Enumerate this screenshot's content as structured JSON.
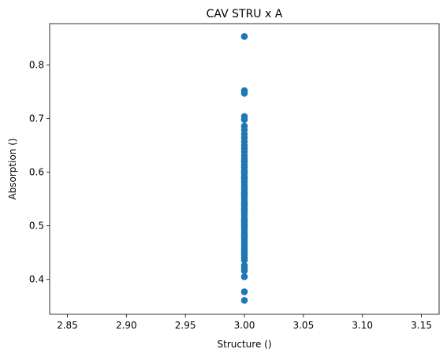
{
  "chart_data": {
    "type": "scatter",
    "title": "CAV STRU x A",
    "xlabel": "Structure ()",
    "ylabel": "Absorption ()",
    "xlim": [
      2.835,
      3.165
    ],
    "ylim": [
      0.335,
      0.877
    ],
    "xticks": [
      2.85,
      2.9,
      2.95,
      3.0,
      3.05,
      3.1,
      3.15
    ],
    "xtick_labels": [
      "2.85",
      "2.90",
      "2.95",
      "3.00",
      "3.05",
      "3.10",
      "3.15"
    ],
    "yticks": [
      0.4,
      0.5,
      0.6,
      0.7,
      0.8
    ],
    "ytick_labels": [
      "0.4",
      "0.5",
      "0.6",
      "0.7",
      "0.8"
    ],
    "grid": false,
    "legend": "none",
    "marker_color": "#1f77b4",
    "series": [
      {
        "x": [
          3.0,
          3.0,
          3.0,
          3.0,
          3.0,
          3.0,
          3.0,
          3.0,
          3.0,
          3.0,
          3.0,
          3.0,
          3.0,
          3.0,
          3.0,
          3.0,
          3.0,
          3.0,
          3.0,
          3.0,
          3.0,
          3.0,
          3.0,
          3.0,
          3.0,
          3.0,
          3.0,
          3.0,
          3.0,
          3.0,
          3.0,
          3.0,
          3.0,
          3.0,
          3.0,
          3.0,
          3.0,
          3.0,
          3.0,
          3.0,
          3.0,
          3.0,
          3.0,
          3.0,
          3.0,
          3.0,
          3.0,
          3.0,
          3.0,
          3.0,
          3.0,
          3.0,
          3.0,
          3.0,
          3.0,
          3.0,
          3.0,
          3.0,
          3.0,
          3.0,
          3.0,
          3.0,
          3.0,
          3.0,
          3.0,
          3.0,
          3.0,
          3.0,
          3.0,
          3.0
        ],
        "y": [
          0.853,
          0.752,
          0.747,
          0.704,
          0.698,
          0.686,
          0.679,
          0.671,
          0.664,
          0.657,
          0.65,
          0.644,
          0.638,
          0.631,
          0.625,
          0.62,
          0.614,
          0.609,
          0.603,
          0.598,
          0.593,
          0.587,
          0.582,
          0.577,
          0.572,
          0.566,
          0.561,
          0.556,
          0.551,
          0.546,
          0.541,
          0.536,
          0.531,
          0.526,
          0.521,
          0.516,
          0.511,
          0.506,
          0.501,
          0.496,
          0.491,
          0.486,
          0.481,
          0.476,
          0.471,
          0.466,
          0.461,
          0.456,
          0.451,
          0.446,
          0.441,
          0.436,
          0.426,
          0.421,
          0.416,
          0.405,
          0.377,
          0.361,
          0.6,
          0.57,
          0.54,
          0.51,
          0.48,
          0.455,
          0.62,
          0.59,
          0.56,
          0.53,
          0.5,
          0.44
        ]
      }
    ]
  }
}
